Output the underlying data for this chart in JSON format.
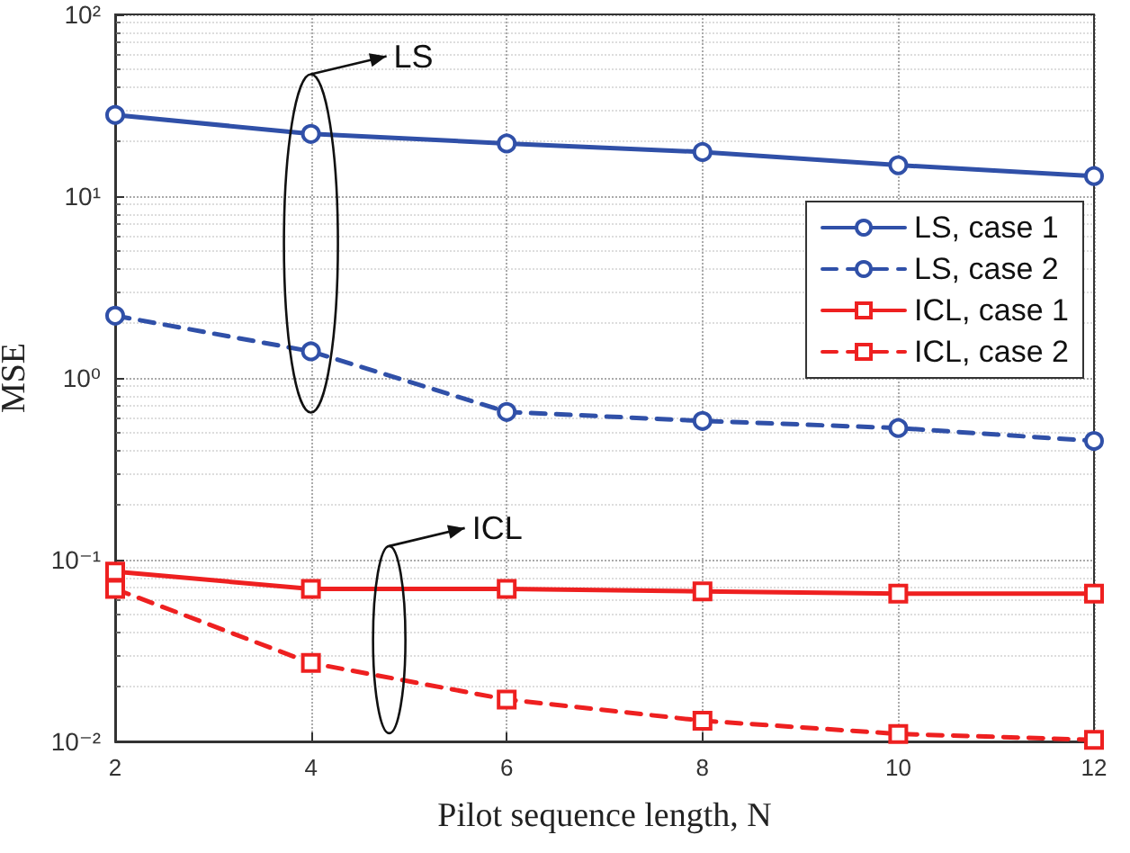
{
  "chart_data": {
    "type": "line",
    "xlabel": "Pilot sequence length, N",
    "ylabel": "MSE",
    "x": [
      2,
      4,
      6,
      8,
      10,
      12
    ],
    "series": [
      {
        "name": "LS, case 1",
        "color": "#3050a8",
        "marker": "circle",
        "line_style": "solid",
        "values": [
          28,
          22,
          19.5,
          17.5,
          14.8,
          12.9
        ]
      },
      {
        "name": "LS, case 2",
        "color": "#3050a8",
        "marker": "circle",
        "line_style": "dashed",
        "values": [
          2.2,
          1.4,
          0.65,
          0.58,
          0.53,
          0.45
        ]
      },
      {
        "name": "ICL, case 1",
        "color": "#ee2020",
        "marker": "square",
        "line_style": "solid",
        "values": [
          0.086,
          0.069,
          0.069,
          0.067,
          0.065,
          0.065
        ]
      },
      {
        "name": "ICL, case 2",
        "color": "#ee2020",
        "marker": "square",
        "line_style": "dashed",
        "values": [
          0.069,
          0.027,
          0.017,
          0.013,
          0.011,
          0.0102
        ]
      }
    ],
    "log": "y",
    "xlim": [
      2,
      12
    ],
    "xticks": [
      2,
      4,
      6,
      8,
      10,
      12
    ],
    "ylim": [
      0.01,
      100
    ],
    "yticks": [
      {
        "value": 0.01,
        "label": "10⁻²"
      },
      {
        "value": 0.1,
        "label": "10⁻¹"
      },
      {
        "value": 1,
        "label": "10⁰"
      },
      {
        "value": 10,
        "label": "10¹"
      },
      {
        "value": 100,
        "label": "10²"
      }
    ],
    "grid": true,
    "legend": "top right",
    "annotations": [
      "LS",
      "ICL"
    ]
  }
}
